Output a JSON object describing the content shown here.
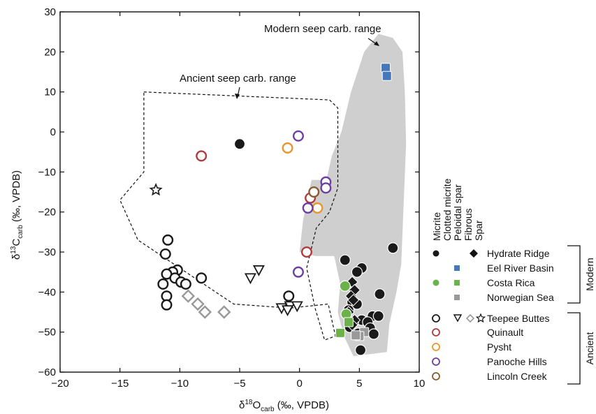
{
  "chart_data": {
    "type": "scatter",
    "xlabel": {
      "prefix": "δ",
      "sup": "18",
      "main": "O",
      "sub": "carb",
      "suffix": " (‰, VPDB)"
    },
    "ylabel": {
      "prefix": "δ",
      "sup": "13",
      "main": "C",
      "sub": "carb",
      "suffix": " (‰, VPDB)"
    },
    "xlim": [
      -20,
      10
    ],
    "ylim": [
      -60,
      30
    ],
    "xticks": [
      -20,
      -15,
      -10,
      -5,
      0,
      5,
      10
    ],
    "yticks": [
      -60,
      -50,
      -40,
      -30,
      -20,
      -10,
      0,
      10,
      20,
      30
    ],
    "grid": false,
    "annotations": {
      "modern_range": "Modern seep carb. range",
      "ancient_range": "Ancient seep carb. range"
    },
    "regions": {
      "modern": [
        [
          7.8,
          23.5
        ],
        [
          6.6,
          24.5
        ],
        [
          5.4,
          20
        ],
        [
          4.3,
          10
        ],
        [
          3.5,
          0
        ],
        [
          2.7,
          -6
        ],
        [
          2.1,
          -14
        ],
        [
          1.7,
          -12
        ],
        [
          1.0,
          -12
        ],
        [
          0.3,
          -22
        ],
        [
          0.0,
          -30
        ],
        [
          1.3,
          -31
        ],
        [
          2.9,
          -31
        ],
        [
          3.4,
          -38
        ],
        [
          3.2,
          -45
        ],
        [
          3.7,
          -51
        ],
        [
          4.5,
          -56
        ],
        [
          7.3,
          -55
        ],
        [
          7.5,
          -48
        ],
        [
          8.1,
          -40
        ],
        [
          8.5,
          -33
        ],
        [
          8.7,
          -18
        ],
        [
          8.9,
          -3
        ],
        [
          8.8,
          10
        ],
        [
          8.6,
          20
        ]
      ],
      "ancient": [
        [
          -13,
          10
        ],
        [
          2.5,
          8
        ],
        [
          3.2,
          6
        ],
        [
          3.2,
          -2
        ],
        [
          3.2,
          -14
        ],
        [
          2.5,
          -20
        ],
        [
          1.4,
          -24
        ],
        [
          0.6,
          -34
        ],
        [
          1.3,
          -44
        ],
        [
          2.1,
          -52
        ],
        [
          3,
          -51
        ],
        [
          2.4,
          -43
        ],
        [
          -0.8,
          -44
        ],
        [
          -5.5,
          -43
        ],
        [
          -9,
          -36
        ],
        [
          -13.5,
          -27
        ],
        [
          -15,
          -17
        ],
        [
          -13,
          -10
        ]
      ]
    },
    "series": [
      {
        "name": "Hydrate Ridge",
        "group": "Modern",
        "color": "#1a1a1a",
        "micrite": [
          [
            -5.0,
            -3
          ],
          [
            7.8,
            -29
          ],
          [
            3.8,
            -32
          ],
          [
            5.2,
            -34
          ],
          [
            4.8,
            -35
          ],
          [
            6.7,
            -40.5
          ],
          [
            4.4,
            -42.5
          ],
          [
            4.8,
            -43
          ],
          [
            4.1,
            -44.5
          ],
          [
            6.1,
            -46
          ],
          [
            6.6,
            -46
          ],
          [
            5.2,
            -47
          ],
          [
            4.5,
            -47.5
          ],
          [
            5.7,
            -47.5
          ],
          [
            4.2,
            -48.8
          ],
          [
            5.9,
            -49
          ],
          [
            4.9,
            -50.3
          ],
          [
            6.2,
            -50.5
          ],
          [
            5.1,
            -54.5
          ]
        ],
        "spar": [
          [
            4.4,
            -37.5
          ],
          [
            4.6,
            -39.5
          ],
          [
            4.3,
            -41
          ],
          [
            4.5,
            -42
          ],
          [
            4.1,
            -45
          ],
          [
            4.6,
            -47
          ],
          [
            4.4,
            -48.2
          ]
        ]
      },
      {
        "name": "Eel River Basin",
        "group": "Modern",
        "color": "#4677b8",
        "peloidal": [
          [
            7.2,
            16
          ],
          [
            7.3,
            14
          ]
        ]
      },
      {
        "name": "Costa Rica",
        "group": "Modern",
        "color": "#6cb24a",
        "micrite": [
          [
            3.8,
            -38.5
          ],
          [
            3.9,
            -45.5
          ]
        ],
        "peloidal": [
          [
            4.1,
            -47.5
          ],
          [
            3.4,
            -50.2
          ]
        ]
      },
      {
        "name": "Norwegian Sea",
        "group": "Modern",
        "color": "#999999",
        "peloidal": [
          [
            5.4,
            -50
          ],
          [
            5.0,
            -51
          ],
          [
            4.7,
            -50.8
          ]
        ]
      },
      {
        "name": "Teepee Buttes",
        "group": "Ancient",
        "color": "#1a1a1a",
        "micrite": [
          [
            -11,
            -27
          ],
          [
            -11.2,
            -30.5
          ],
          [
            -10.2,
            -34.5
          ],
          [
            -10.6,
            -35
          ],
          [
            -11.1,
            -35.5
          ],
          [
            -10.4,
            -36.5
          ],
          [
            -8.2,
            -36.5
          ],
          [
            -9.9,
            -37.5
          ],
          [
            -9.5,
            -38
          ],
          [
            -11.4,
            -38
          ],
          [
            -0.9,
            -41
          ],
          [
            -11.1,
            -41
          ],
          [
            -11.1,
            -43.2
          ]
        ],
        "fibrous": [
          [
            -3.4,
            -34.5
          ],
          [
            -4.1,
            -36.5
          ],
          [
            -0.8,
            -43.5
          ],
          [
            -0.2,
            -43.5
          ],
          [
            -1.5,
            -44
          ],
          [
            -1.0,
            -44.5
          ]
        ],
        "spar_gray": [
          [
            -9.3,
            -41
          ],
          [
            -8.5,
            -43
          ],
          [
            -7.9,
            -45
          ],
          [
            -6.3,
            -45
          ]
        ],
        "star": [
          [
            -12,
            -14.5
          ]
        ]
      },
      {
        "name": "Quinault",
        "group": "Ancient",
        "color": "#b33a3a",
        "micrite": [
          [
            -8.2,
            -6
          ],
          [
            0.9,
            -16.5
          ],
          [
            0.6,
            -30
          ]
        ]
      },
      {
        "name": "Pysht",
        "group": "Ancient",
        "color": "#e8962e",
        "micrite": [
          [
            -1.0,
            -4
          ],
          [
            1.5,
            -19
          ]
        ]
      },
      {
        "name": "Panoche Hills",
        "group": "Ancient",
        "color": "#6b3fa0",
        "micrite": [
          [
            -0.1,
            -1
          ],
          [
            2.2,
            -12.5
          ],
          [
            2.2,
            -14
          ],
          [
            0.7,
            -19
          ],
          [
            -0.1,
            -35
          ]
        ]
      },
      {
        "name": "Lincoln Creek",
        "group": "Ancient",
        "color": "#8b5a2b",
        "micrite": [
          [
            1.2,
            -15
          ]
        ]
      }
    ],
    "legend": {
      "headers": [
        "Micrite",
        "Clotted micrite",
        "Peloidal spar",
        "Fibrous",
        "Spar"
      ],
      "modern_label": "Modern",
      "ancient_label": "Ancient",
      "modern_items": [
        "Hydrate Ridge",
        "Eel River Basin",
        "Costa Rica",
        "Norwegian Sea"
      ],
      "ancient_items": [
        "Teepee Buttes",
        "Quinault",
        "Pysht",
        "Panoche Hills",
        "Lincoln Creek"
      ]
    }
  }
}
